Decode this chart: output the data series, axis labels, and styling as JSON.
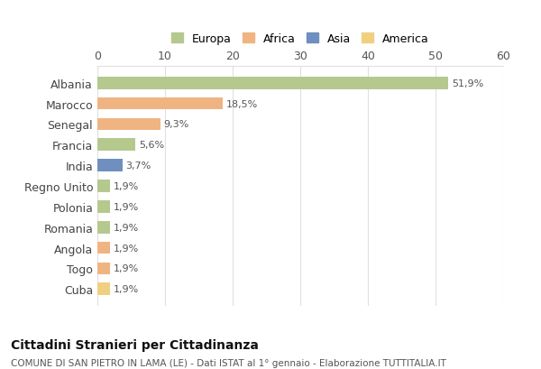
{
  "categories": [
    "Albania",
    "Marocco",
    "Senegal",
    "Francia",
    "India",
    "Regno Unito",
    "Polonia",
    "Romania",
    "Angola",
    "Togo",
    "Cuba"
  ],
  "values": [
    51.9,
    18.5,
    9.3,
    5.6,
    3.7,
    1.9,
    1.9,
    1.9,
    1.9,
    1.9,
    1.9
  ],
  "labels": [
    "51,9%",
    "18,5%",
    "9,3%",
    "5,6%",
    "3,7%",
    "1,9%",
    "1,9%",
    "1,9%",
    "1,9%",
    "1,9%",
    "1,9%"
  ],
  "colors": [
    "#b5c98e",
    "#f0b482",
    "#f0b482",
    "#b5c98e",
    "#6f8fbe",
    "#b5c98e",
    "#b5c98e",
    "#b5c98e",
    "#f0b482",
    "#f0b482",
    "#f0d080"
  ],
  "legend_labels": [
    "Europa",
    "Africa",
    "Asia",
    "America"
  ],
  "legend_colors": [
    "#b5c98e",
    "#f0b482",
    "#6f8fbe",
    "#f0d080"
  ],
  "title_bold": "Cittadini Stranieri per Cittadinanza",
  "title_sub": "COMUNE DI SAN PIETRO IN LAMA (LE) - Dati ISTAT al 1° gennaio - Elaborazione TUTTITALIA.IT",
  "xlim": [
    0,
    60
  ],
  "xticks": [
    0,
    10,
    20,
    30,
    40,
    50,
    60
  ],
  "background_color": "#ffffff",
  "grid_color": "#e0e0e0"
}
